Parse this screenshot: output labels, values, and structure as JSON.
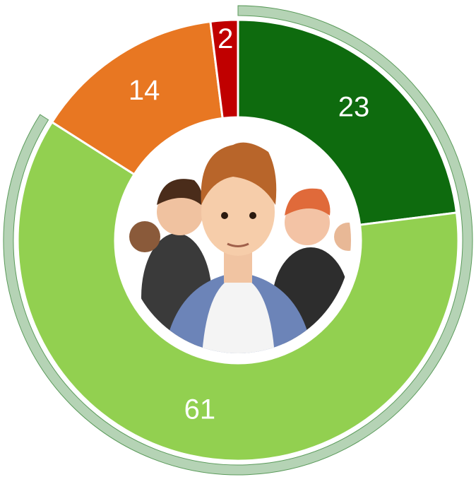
{
  "chart_data": {
    "type": "pie",
    "values": [
      23,
      61,
      14,
      2
    ],
    "colors": [
      "#0e6b0e",
      "#92d050",
      "#e87722",
      "#c00000"
    ],
    "ring_color": "#b5d3b5"
  }
}
